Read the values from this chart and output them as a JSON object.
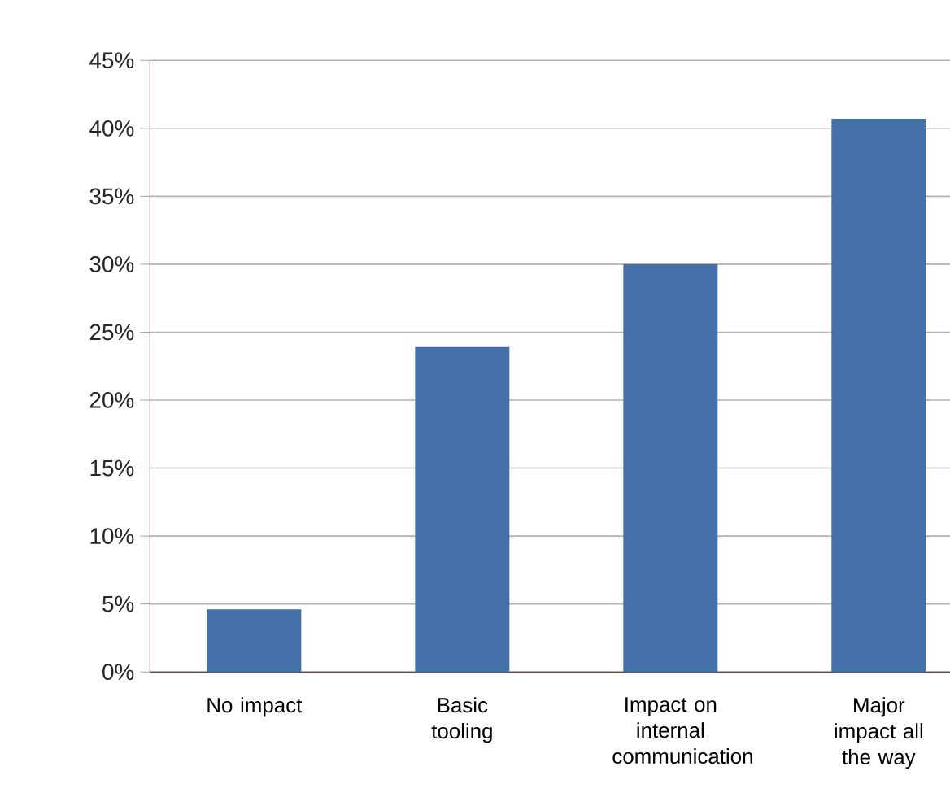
{
  "chart_data": {
    "type": "bar",
    "categories": [
      "No impact",
      "Basic tooling",
      "Impact on internal communication",
      "Major impact all the way"
    ],
    "values": [
      4.6,
      23.9,
      30,
      40.7
    ],
    "color": "#4470aa",
    "ylim": [
      0,
      45
    ],
    "yticks": [
      {
        "value": 0,
        "label": "0%"
      },
      {
        "value": 5,
        "label": "5%"
      },
      {
        "value": 10,
        "label": "10%"
      },
      {
        "value": 15,
        "label": "15%"
      },
      {
        "value": 20,
        "label": "20%"
      },
      {
        "value": 25,
        "label": "25%"
      },
      {
        "value": 30,
        "label": "30%"
      },
      {
        "value": 35,
        "label": "35%"
      },
      {
        "value": 40,
        "label": "40%"
      },
      {
        "value": 45,
        "label": "45%"
      }
    ],
    "grid": "y"
  }
}
